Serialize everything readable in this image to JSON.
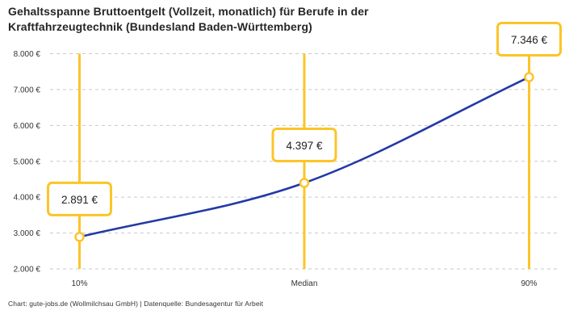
{
  "title_lines": [
    "Gehaltsspanne Bruttoentgelt (Vollzeit, monatlich) für Berufe in der",
    "Kraftfahrzeugtechnik (Bundesland Baden-Württemberg)"
  ],
  "footer": "Chart: gute-jobs.de (Wollmilchsau GmbH) | Datenquelle: Bundesagentur für Arbeit",
  "colors": {
    "accent_yellow": "#FCC428",
    "curve_blue": "#2339A5",
    "grid_gray": "#C9C9C9",
    "axis_text": "#333333",
    "label_text": "#222222",
    "marker_fill": "#FFFFFF",
    "background": "#FFFFFF"
  },
  "chart_data": {
    "type": "line",
    "title": "Gehaltsspanne Bruttoentgelt (Vollzeit, monatlich) für Berufe in der Kraftfahrzeugtechnik (Bundesland Baden-Württemberg)",
    "xlabel": "",
    "ylabel": "",
    "categories": [
      "10%",
      "Median",
      "90%"
    ],
    "series": [
      {
        "name": "Bruttoentgelt",
        "values": [
          2891,
          4397,
          7346
        ]
      }
    ],
    "point_labels": [
      "2.891 €",
      "4.397 €",
      "7.346 €"
    ],
    "y_ticks": [
      {
        "value": 2000,
        "label": "2.000 €"
      },
      {
        "value": 3000,
        "label": "3.000 €"
      },
      {
        "value": 4000,
        "label": "4.000 €"
      },
      {
        "value": 5000,
        "label": "5.000 €"
      },
      {
        "value": 6000,
        "label": "6.000 €"
      },
      {
        "value": 7000,
        "label": "7.000 €"
      },
      {
        "value": 8000,
        "label": "8.000 €"
      }
    ],
    "ylim": [
      2000,
      8000
    ],
    "grid": "horizontal-dashed",
    "legend_position": "none",
    "marker": "open-circle",
    "vertical_marker_lines": true
  }
}
